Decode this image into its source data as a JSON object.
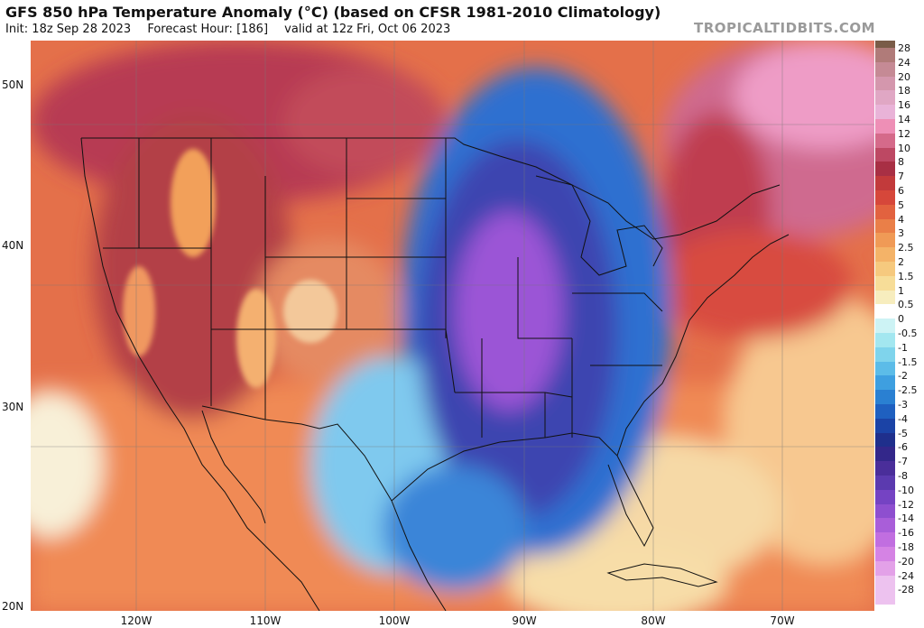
{
  "header": {
    "title": "GFS 850 hPa Temperature Anomaly (°C) (based on CFSR 1981-2010 Climatology)",
    "init": "Init: 18z Sep 28 2023",
    "forecast_hour": "Forecast Hour: [186]",
    "valid": "valid at 12z Fri, Oct 06 2023",
    "brand": "TROPICALTIDBITS.COM"
  },
  "axes": {
    "lat_labels": [
      "50N",
      "40N",
      "30N",
      "20N"
    ],
    "lon_labels": [
      "120W",
      "110W",
      "100W",
      "90W",
      "80W",
      "70W"
    ]
  },
  "colorbar": {
    "labels": [
      "28",
      "24",
      "20",
      "18",
      "16",
      "14",
      "12",
      "10",
      "8",
      "7",
      "6",
      "5",
      "4",
      "3",
      "2.5",
      "2",
      "1.5",
      "1",
      "0.5",
      "0",
      "-0.5",
      "-1",
      "-1.5",
      "-2",
      "-2.5",
      "-3",
      "-4",
      "-5",
      "-6",
      "-7",
      "-8",
      "-10",
      "-12",
      "-14",
      "-16",
      "-18",
      "-20",
      "-24",
      "-28"
    ],
    "colors": [
      "#7a5c48",
      "#b07b79",
      "#c58a95",
      "#d497ad",
      "#e0a7c4",
      "#e9b3d8",
      "#ee8fb6",
      "#d56a8a",
      "#bd4863",
      "#a82f44",
      "#c23a3b",
      "#d6473a",
      "#e2623f",
      "#ea7f48",
      "#f09a56",
      "#f4b368",
      "#f6c97e",
      "#f7dd98",
      "#f7edbe",
      "#ffffff",
      "#cdf3f5",
      "#a3e7f0",
      "#7fd4ec",
      "#5cbce8",
      "#3e9fe0",
      "#2a80d2",
      "#1f60c0",
      "#1b43a6",
      "#1f2f8c",
      "#33278a",
      "#4a2e9a",
      "#5b3aaf",
      "#7543c3",
      "#8e4fcf",
      "#a95ed9",
      "#c16ee0",
      "#d583e4",
      "#e3a1e8",
      "#edc2ef"
    ]
  },
  "colors": {
    "cold_core": "#9b55d6",
    "cold_outer": "#2f6fd0",
    "warm_core": "#a82f44",
    "warm_outer": "#e87850",
    "neutral": "#fbf0c8",
    "boundary": "#111111"
  }
}
